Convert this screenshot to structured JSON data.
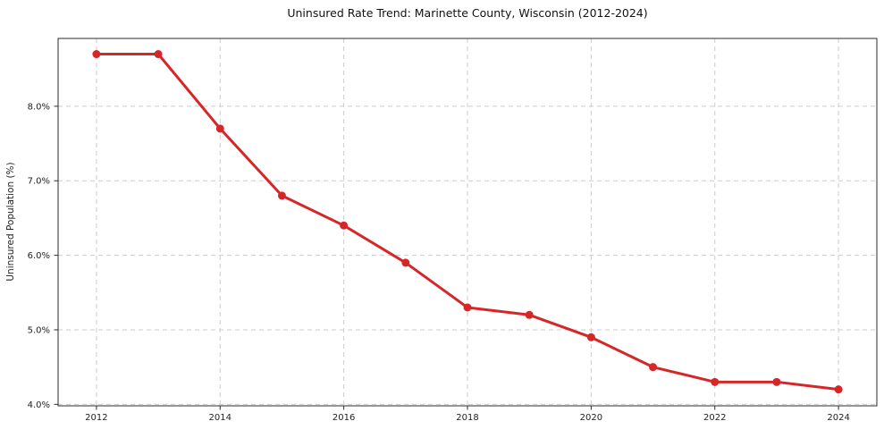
{
  "page": {
    "background": "#ffffff"
  },
  "chart_data": {
    "type": "line",
    "title": "Uninsured Rate Trend: Marinette County, Wisconsin (2012-2024)",
    "xlabel": "",
    "ylabel": "Uninsured Population (%)",
    "x": [
      2012,
      2013,
      2014,
      2015,
      2016,
      2017,
      2018,
      2019,
      2020,
      2021,
      2022,
      2023,
      2024
    ],
    "values": [
      8.7,
      8.7,
      7.7,
      6.8,
      6.4,
      5.9,
      5.3,
      5.2,
      4.9,
      4.5,
      4.3,
      4.3,
      4.2
    ],
    "xlim": [
      2011.38,
      2024.62
    ],
    "ylim": [
      3.98,
      8.91
    ],
    "xticks": {
      "values": [
        2012,
        2014,
        2016,
        2018,
        2020,
        2022,
        2024
      ],
      "labels": [
        "2012",
        "2014",
        "2016",
        "2018",
        "2020",
        "2022",
        "2024"
      ]
    },
    "yticks": {
      "values": [
        4.0,
        5.0,
        6.0,
        7.0,
        8.0
      ],
      "labels": [
        "4.0%",
        "5.0%",
        "6.0%",
        "7.0%",
        "8.0%"
      ]
    },
    "grid": true,
    "legend_position": "none",
    "colors": {
      "line": "#d62728",
      "marker": "#d62728",
      "grid": "#cccccc",
      "axis": "#2b2b2b",
      "tick_text": "#222222",
      "title_text": "#111111"
    }
  }
}
